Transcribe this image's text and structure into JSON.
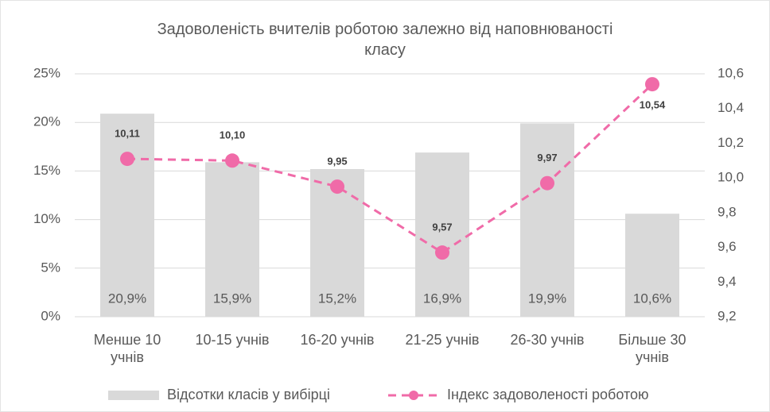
{
  "chart_data": {
    "type": "bar-line",
    "title": "Задоволеність вчителів роботою залежно від наповнюваності класу",
    "categories": [
      "Менше 10 учнів",
      "10-15 учнів",
      "16-20 учнів",
      "21-25 учнів",
      "26-30 учнів",
      "Більше 30 учнів"
    ],
    "series": [
      {
        "name": "Відсотки класів у вибірці",
        "type": "bar",
        "color": "#d9d9d9",
        "axis": "y",
        "values": [
          20.9,
          15.9,
          15.2,
          16.9,
          19.9,
          10.6
        ],
        "value_labels": [
          "20,9%",
          "15,9%",
          "15,2%",
          "16,9%",
          "19,9%",
          "10,6%"
        ]
      },
      {
        "name": "Індекс задоволеності роботою",
        "type": "line",
        "color": "#f06ba8",
        "axis": "y2",
        "values": [
          10.11,
          10.1,
          9.95,
          9.57,
          9.97,
          10.54
        ],
        "value_labels": [
          "10,11",
          "10,10",
          "9,95",
          "9,57",
          "9,97",
          "10,54"
        ]
      }
    ],
    "ylim": [
      0,
      25
    ],
    "yticks": [
      {
        "value": 0,
        "label": "0%"
      },
      {
        "value": 5,
        "label": "5%"
      },
      {
        "value": 10,
        "label": "10%"
      },
      {
        "value": 15,
        "label": "15%"
      },
      {
        "value": 20,
        "label": "20%"
      },
      {
        "value": 25,
        "label": "25%"
      }
    ],
    "y2lim": [
      9.2,
      10.6
    ],
    "y2ticks": [
      {
        "value": 9.2,
        "label": "9,2"
      },
      {
        "value": 9.4,
        "label": "9,4"
      },
      {
        "value": 9.6,
        "label": "9,6"
      },
      {
        "value": 9.8,
        "label": "9,8"
      },
      {
        "value": 10.0,
        "label": "10,0"
      },
      {
        "value": 10.2,
        "label": "10,2"
      },
      {
        "value": 10.4,
        "label": "10,4"
      },
      {
        "value": 10.6,
        "label": "10,6"
      }
    ],
    "grid": true,
    "legend": "bottom"
  }
}
